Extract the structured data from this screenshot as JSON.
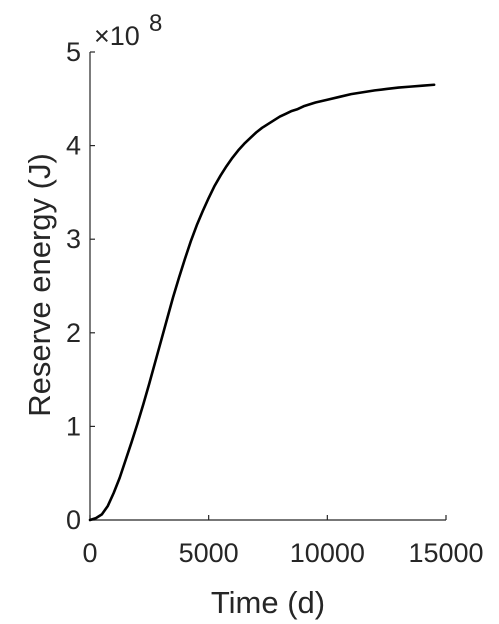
{
  "chart_data": {
    "type": "line",
    "title": "",
    "xlabel": "Time (d)",
    "ylabel": "Reserve energy (J)",
    "xlim": [
      0,
      15000
    ],
    "ylim": [
      0,
      5
    ],
    "y_multiplier_label": "×10",
    "y_multiplier_exponent": "8",
    "x_ticks": [
      0,
      5000,
      10000,
      15000
    ],
    "x_tick_labels": [
      "0",
      "5000",
      "10000",
      "15000"
    ],
    "y_ticks": [
      0,
      1,
      2,
      3,
      4,
      5
    ],
    "y_tick_labels": [
      "0",
      "1",
      "2",
      "3",
      "4",
      "5"
    ],
    "grid": false,
    "series": [
      {
        "color": "#000000",
        "x": [
          0,
          250,
          500,
          750,
          1000,
          1250,
          1500,
          1750,
          2000,
          2250,
          2500,
          2750,
          3000,
          3250,
          3500,
          3750,
          4000,
          4250,
          4500,
          4750,
          5000,
          5250,
          5500,
          5750,
          6000,
          6250,
          6500,
          6750,
          7000,
          7250,
          7500,
          7750,
          8000,
          8250,
          8500,
          8750,
          9000,
          9250,
          9500,
          9750,
          10000,
          10500,
          11000,
          11500,
          12000,
          12500,
          13000,
          13500,
          14000,
          14500
        ],
        "y": [
          0.0,
          0.02,
          0.06,
          0.15,
          0.29,
          0.45,
          0.64,
          0.83,
          1.03,
          1.24,
          1.46,
          1.69,
          1.92,
          2.15,
          2.38,
          2.59,
          2.79,
          2.98,
          3.15,
          3.3,
          3.44,
          3.57,
          3.68,
          3.78,
          3.87,
          3.95,
          4.02,
          4.08,
          4.14,
          4.19,
          4.23,
          4.27,
          4.31,
          4.34,
          4.37,
          4.39,
          4.42,
          4.44,
          4.46,
          4.475,
          4.49,
          4.52,
          4.55,
          4.57,
          4.59,
          4.605,
          4.62,
          4.63,
          4.64,
          4.65
        ]
      }
    ]
  }
}
